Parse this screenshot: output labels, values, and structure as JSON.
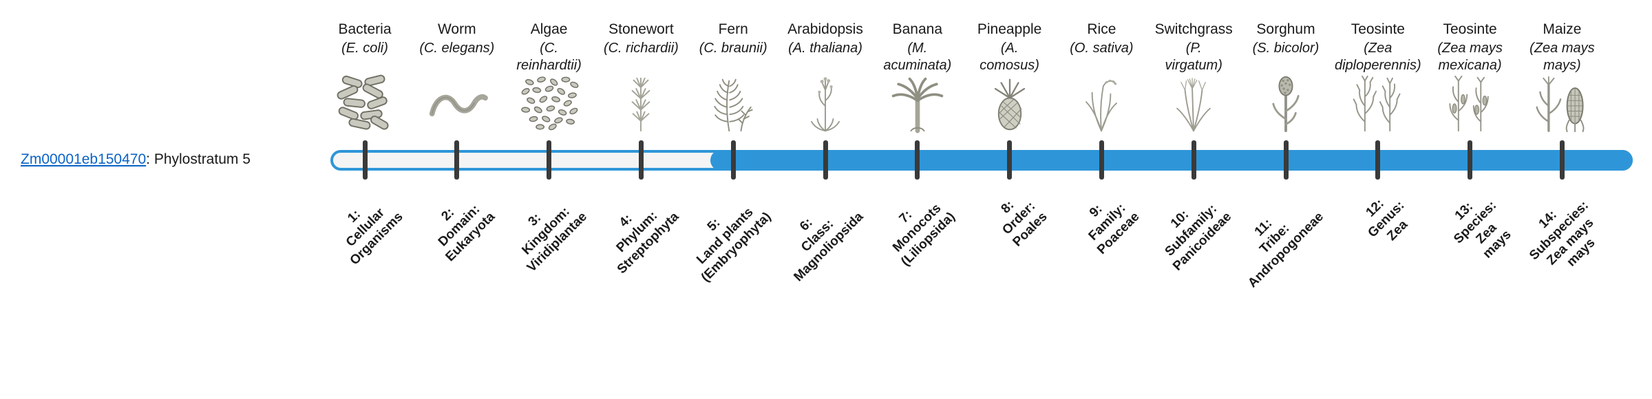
{
  "gene": {
    "id": "Zm00001eb150470",
    "suffix": ": Phylostratum 5",
    "phylostratum": 5
  },
  "colors": {
    "track_blue": "#2e96d8",
    "track_empty_fill": "#f4f4f4",
    "tick": "#3a3a3a",
    "link_blue": "#0b63c5",
    "text": "#1a1a1a",
    "illustration_gray": "#9a9a8e"
  },
  "phylostrata": [
    {
      "number": 1,
      "name": "Bacteria",
      "sci": "(E. coli)",
      "icon": "bacteria-icon",
      "label": "1:\nCellular\nOrganisms"
    },
    {
      "number": 2,
      "name": "Worm",
      "sci": "(C. elegans)",
      "icon": "worm-icon",
      "label": "2:\nDomain:\nEukaryota"
    },
    {
      "number": 3,
      "name": "Algae",
      "sci": "(C.\nreinhardtii)",
      "icon": "algae-icon",
      "label": "3:\nKingdom:\nViridiplantae"
    },
    {
      "number": 4,
      "name": "Stonewort",
      "sci": "(C. richardii)",
      "icon": "stonewort-icon",
      "label": "4:\nPhylum:\nStreptophyta"
    },
    {
      "number": 5,
      "name": "Fern",
      "sci": "(C. braunii)",
      "icon": "fern-icon",
      "label": "5:\nLand plants\n(Embryophyta)"
    },
    {
      "number": 6,
      "name": "Arabidopsis",
      "sci": "(A. thaliana)",
      "icon": "arabidopsis-icon",
      "label": "6:\nClass:\nMagnoliopsida"
    },
    {
      "number": 7,
      "name": "Banana",
      "sci": "(M.\nacuminata)",
      "icon": "banana-icon",
      "label": "7:\nMonocots\n(Liliopsida)"
    },
    {
      "number": 8,
      "name": "Pineapple",
      "sci": "(A.\ncomosus)",
      "icon": "pineapple-icon",
      "label": "8:\nOrder:\nPoales"
    },
    {
      "number": 9,
      "name": "Rice",
      "sci": "(O. sativa)",
      "icon": "rice-icon",
      "label": "9:\nFamily:\nPoaceae"
    },
    {
      "number": 10,
      "name": "Switchgrass",
      "sci": "(P.\nvirgatum)",
      "icon": "switchgrass-icon",
      "label": "10:\nSubfamily:\nPanicoideae"
    },
    {
      "number": 11,
      "name": "Sorghum",
      "sci": "(S. bicolor)",
      "icon": "sorghum-icon",
      "label": "11:\nTribe:\nAndropogoneae"
    },
    {
      "number": 12,
      "name": "Teosinte",
      "sci": "(Zea\ndiploperennis)",
      "icon": "teosinte-diploperennis-icon",
      "label": "12:\nGenus:\nZea"
    },
    {
      "number": 13,
      "name": "Teosinte",
      "sci": "(Zea mays\nmexicana)",
      "icon": "teosinte-mexicana-icon",
      "label": "13:\nSpecies:\nZea\nmays"
    },
    {
      "number": 14,
      "name": "Maize",
      "sci": "(Zea mays\nmays)",
      "icon": "maize-icon",
      "label": "14:\nSubspecies:\nZea mays\nmays"
    }
  ]
}
